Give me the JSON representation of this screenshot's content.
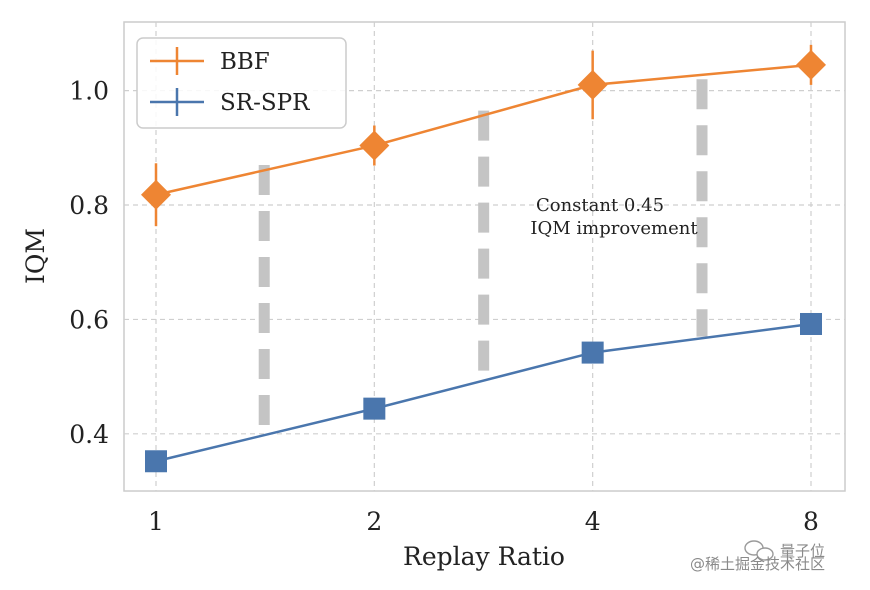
{
  "chart_data": {
    "type": "line",
    "x": [
      1,
      2,
      4,
      8
    ],
    "x_tick_labels": [
      "1",
      "2",
      "4",
      "8"
    ],
    "x_scale": "log2",
    "xlabel": "Replay Ratio",
    "ylabel": "IQM",
    "ylim": [
      0.3,
      1.12
    ],
    "y_ticks": [
      0.4,
      0.6,
      0.8,
      1.0
    ],
    "y_tick_labels": [
      "0.4",
      "0.6",
      "0.8",
      "1.0"
    ],
    "grid": true,
    "legend_position": "top-left",
    "series": [
      {
        "name": "BBF",
        "values": [
          0.818,
          0.904,
          1.01,
          1.045
        ],
        "err": [
          0.055,
          0.035,
          0.06,
          0.035
        ],
        "color": "#ee8533",
        "marker": "diamond"
      },
      {
        "name": "SR-SPR",
        "values": [
          0.352,
          0.444,
          0.542,
          0.592
        ],
        "err": [
          0.0,
          0.0,
          0.0,
          0.0
        ],
        "color": "#4a76ad",
        "marker": "square"
      }
    ],
    "gap_bars": [
      {
        "x": 1.41,
        "y_low": 0.415,
        "y_high": 0.87
      },
      {
        "x": 2.83,
        "y_low": 0.51,
        "y_high": 0.965
      },
      {
        "x": 5.66,
        "y_low": 0.57,
        "y_high": 1.02
      }
    ],
    "annotation": [
      "Constant 0.45",
      "IQM improvement"
    ]
  },
  "watermark": {
    "brand": "量子位",
    "credit": "@稀土掘金技术社区"
  }
}
